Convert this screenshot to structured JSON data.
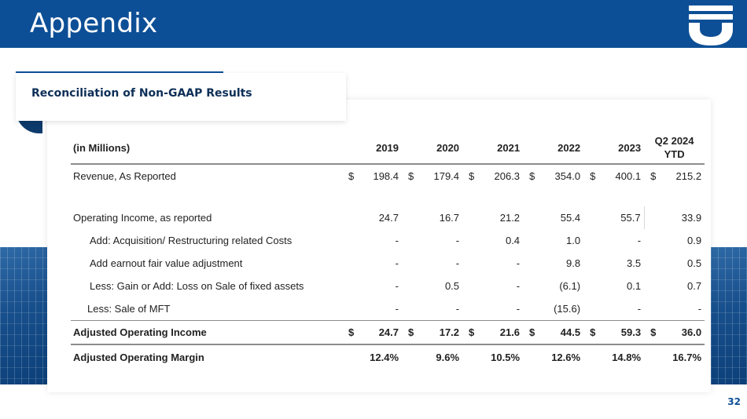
{
  "header": {
    "title": "Appendix",
    "logo_icon": "company-logo-icon",
    "color": "#0d4f96"
  },
  "subtitle": "Reconciliation of Non-GAAP Results",
  "table": {
    "units_label": "(in Millions)",
    "columns": [
      "2019",
      "2020",
      "2021",
      "2022",
      "2023",
      "Q2 2024",
      "YTD"
    ],
    "rows": {
      "revenue": {
        "label": "Revenue, As Reported",
        "currency": "$",
        "values": [
          "198.4",
          "179.4",
          "206.3",
          "354.0",
          "400.1",
          "215.2"
        ]
      },
      "operating_income": {
        "label": "Operating Income, as reported",
        "values": [
          "24.7",
          "16.7",
          "21.2",
          "55.4",
          "55.7",
          "33.9"
        ]
      },
      "acquisition_costs": {
        "label": "Add: Acquisition/ Restructuring related Costs",
        "values": [
          "-",
          "-",
          "0.4",
          "1.0",
          "-",
          "0.9"
        ]
      },
      "earnout": {
        "label": "Add earnout fair value adjustment",
        "values": [
          "-",
          "-",
          "-",
          "9.8",
          "3.5",
          "0.5"
        ]
      },
      "fixed_assets": {
        "label": "Less: Gain or Add: Loss on Sale of fixed assets",
        "values": [
          "-",
          "0.5",
          "-",
          "(6.1)",
          "0.1",
          "0.7"
        ]
      },
      "sale_mft": {
        "label": "Less: Sale of MFT",
        "values": [
          "-",
          "-",
          "-",
          "(15.6)",
          "-",
          "-"
        ]
      },
      "adj_operating_income": {
        "label": "Adjusted Operating Income",
        "currency": "$",
        "values": [
          "24.7",
          "17.2",
          "21.6",
          "44.5",
          "59.3",
          "36.0"
        ]
      },
      "adj_operating_margin": {
        "label": "Adjusted Operating Margin",
        "values": [
          "12.4%",
          "9.6%",
          "10.5%",
          "12.6%",
          "14.8%",
          "16.7%"
        ]
      }
    }
  },
  "page_number": "32"
}
